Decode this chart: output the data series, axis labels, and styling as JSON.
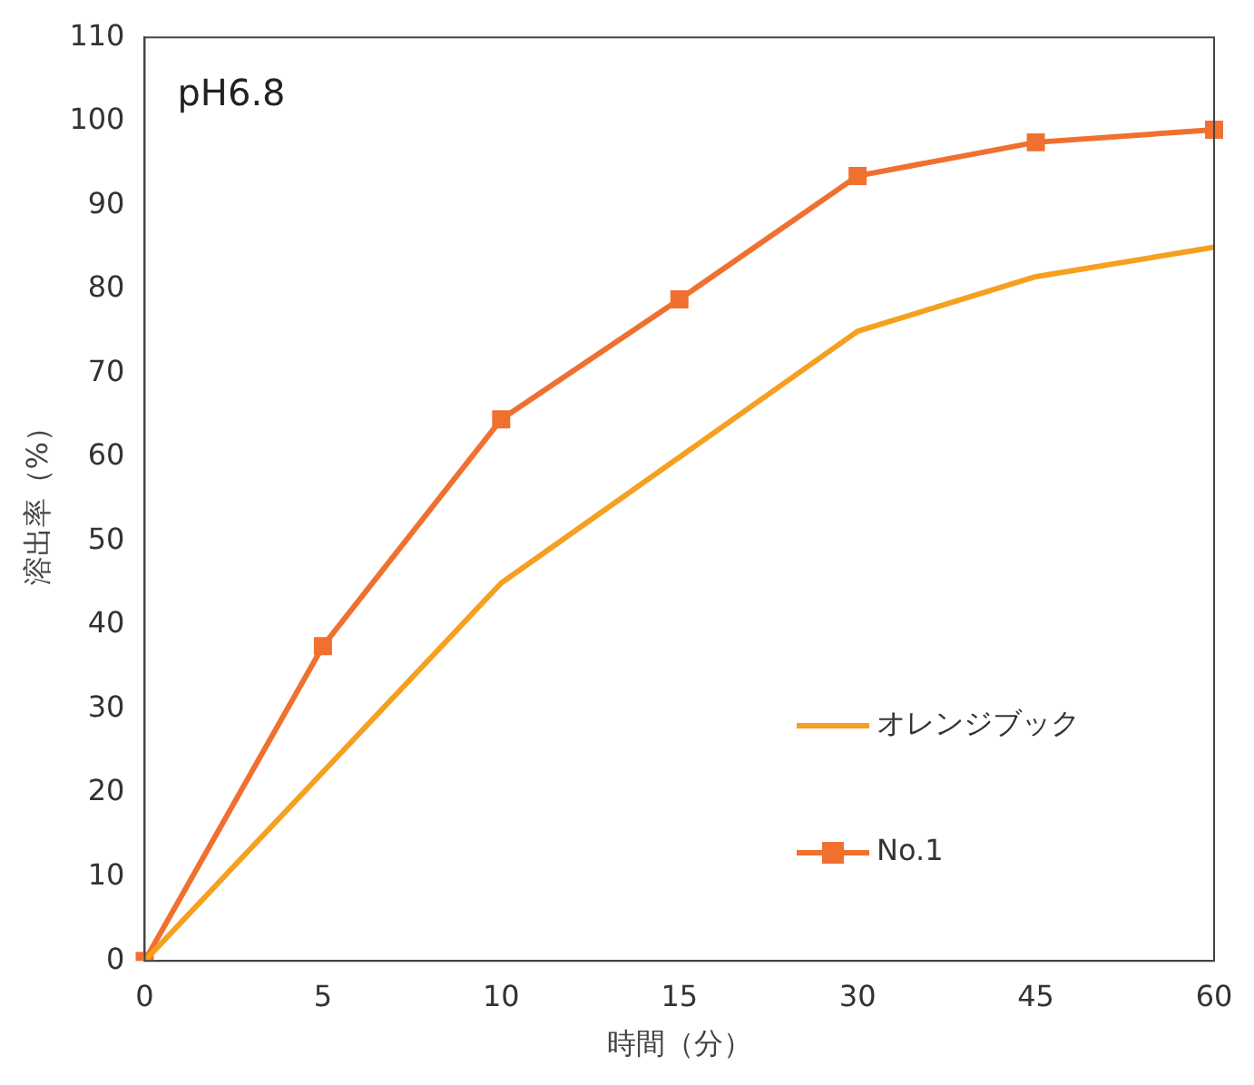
{
  "chart_data": {
    "type": "line",
    "xlabel": "時間（分）",
    "ylabel": "溶出率（%）",
    "annotations": [
      "pH6.8"
    ],
    "categories": [
      "0",
      "5",
      "10",
      "15",
      "30",
      "45",
      "60"
    ],
    "series": [
      {
        "name": "オレンジブック",
        "color": "#f5a020",
        "marker": "none",
        "values": [
          0,
          22.5,
          45,
          60,
          75,
          81.5,
          85
        ]
      },
      {
        "name": "No.1",
        "color": "#f07030",
        "marker": "square",
        "values": [
          0,
          37.5,
          64.5,
          78.8,
          93.5,
          97.5,
          99
        ]
      }
    ],
    "ylim": [
      0,
      110
    ],
    "yticks": [
      0,
      10,
      20,
      30,
      40,
      50,
      60,
      70,
      80,
      90,
      100,
      110
    ],
    "grid": false,
    "legend": "right",
    "line_style": "solid"
  }
}
